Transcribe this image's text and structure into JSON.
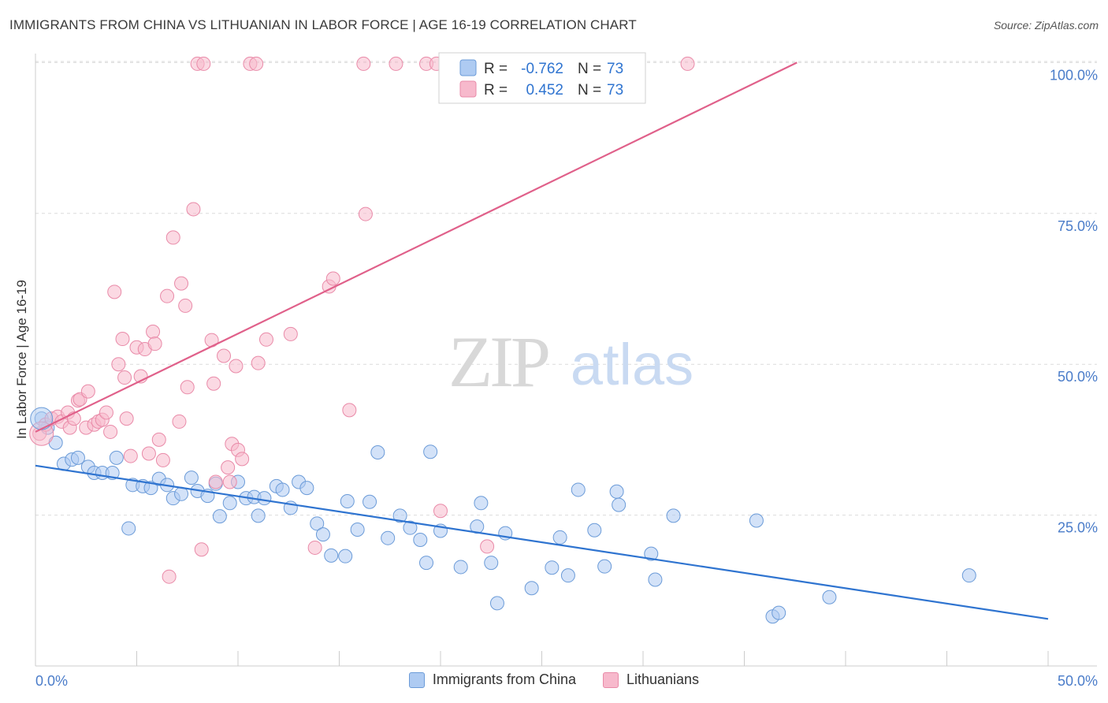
{
  "header": {
    "title": "IMMIGRANTS FROM CHINA VS LITHUANIAN IN LABOR FORCE | AGE 16-19 CORRELATION CHART",
    "source": "Source: ZipAtlas.com"
  },
  "watermark": {
    "zip": "ZIP",
    "atlas": "atlas"
  },
  "stats": [
    {
      "r_label": "R =",
      "r_value": "-0.762",
      "n_label": "N =",
      "n_value": "73"
    },
    {
      "r_label": "R =",
      "r_value": "0.452",
      "n_label": "N =",
      "n_value": "73"
    }
  ],
  "colors": {
    "china_fill": "#aecbf2",
    "china_stroke": "#6b9bd8",
    "china_line": "#2f74d0",
    "lith_fill": "#f7b9cc",
    "lith_stroke": "#e98aa8",
    "lith_line": "#e0608a",
    "axis_text": "#4a7cc9",
    "grid": "#dcdcdc"
  },
  "chart_data": {
    "type": "scatter",
    "title": "IMMIGRANTS FROM CHINA VS LITHUANIAN IN LABOR FORCE | AGE 16-19 CORRELATION CHART",
    "xlabel": "",
    "ylabel": "In Labor Force | Age 16-19",
    "xlim": [
      0,
      50
    ],
    "ylim": [
      0,
      102
    ],
    "x_tick_labels": [
      "0.0%",
      "50.0%"
    ],
    "y_tick_labels": [
      "25.0%",
      "50.0%",
      "75.0%",
      "100.0%"
    ],
    "y_ticks": [
      25,
      50,
      75,
      100
    ],
    "grid": true,
    "legend_position": "bottom",
    "series": [
      {
        "name": "Immigrants from China",
        "r": -0.762,
        "n": 73,
        "trend": {
          "x": [
            0,
            50
          ],
          "y": [
            33.2,
            7.8
          ]
        },
        "points": [
          [
            0.3,
            41.0
          ],
          [
            0.6,
            39.5
          ],
          [
            1.0,
            37.0
          ],
          [
            1.4,
            33.5
          ],
          [
            1.8,
            34.2
          ],
          [
            2.1,
            34.5
          ],
          [
            2.6,
            33.0
          ],
          [
            2.9,
            32.0
          ],
          [
            3.3,
            32.0
          ],
          [
            3.8,
            32.0
          ],
          [
            4.0,
            34.5
          ],
          [
            4.6,
            22.8
          ],
          [
            4.8,
            30.0
          ],
          [
            5.3,
            29.8
          ],
          [
            5.7,
            29.5
          ],
          [
            6.1,
            31.0
          ],
          [
            6.5,
            30.0
          ],
          [
            6.8,
            27.8
          ],
          [
            7.2,
            28.5
          ],
          [
            7.7,
            31.2
          ],
          [
            8.0,
            29.0
          ],
          [
            8.5,
            28.2
          ],
          [
            8.9,
            30.2
          ],
          [
            9.1,
            24.8
          ],
          [
            9.6,
            27.0
          ],
          [
            10.0,
            30.5
          ],
          [
            10.4,
            27.8
          ],
          [
            10.8,
            28.0
          ],
          [
            11.3,
            27.8
          ],
          [
            11.0,
            24.9
          ],
          [
            11.9,
            29.8
          ],
          [
            12.2,
            29.2
          ],
          [
            12.6,
            26.2
          ],
          [
            13.0,
            30.5
          ],
          [
            13.4,
            29.5
          ],
          [
            13.9,
            23.6
          ],
          [
            14.2,
            21.8
          ],
          [
            14.6,
            18.3
          ],
          [
            15.4,
            27.3
          ],
          [
            15.3,
            18.2
          ],
          [
            15.9,
            22.6
          ],
          [
            16.5,
            27.2
          ],
          [
            16.9,
            35.4
          ],
          [
            17.4,
            21.2
          ],
          [
            18.0,
            24.9
          ],
          [
            18.5,
            22.9
          ],
          [
            19.0,
            20.9
          ],
          [
            19.3,
            17.1
          ],
          [
            19.5,
            35.5
          ],
          [
            20.0,
            22.4
          ],
          [
            21.0,
            16.4
          ],
          [
            21.8,
            23.1
          ],
          [
            22.0,
            27.0
          ],
          [
            22.5,
            17.1
          ],
          [
            22.8,
            10.4
          ],
          [
            23.2,
            22.0
          ],
          [
            24.5,
            12.9
          ],
          [
            25.5,
            16.3
          ],
          [
            25.9,
            21.3
          ],
          [
            26.3,
            15.0
          ],
          [
            26.8,
            29.2
          ],
          [
            27.6,
            22.5
          ],
          [
            28.1,
            16.5
          ],
          [
            28.7,
            28.9
          ],
          [
            28.8,
            26.7
          ],
          [
            30.4,
            18.6
          ],
          [
            30.6,
            14.3
          ],
          [
            31.5,
            24.9
          ],
          [
            35.6,
            24.1
          ],
          [
            36.4,
            8.2
          ],
          [
            36.7,
            8.8
          ],
          [
            39.2,
            11.4
          ],
          [
            46.1,
            15.0
          ]
        ]
      },
      {
        "name": "Lithuanians",
        "r": 0.452,
        "n": 73,
        "trend": {
          "x": [
            0,
            37.6
          ],
          "y": [
            38.8,
            100
          ]
        },
        "points": [
          [
            0.2,
            38.5
          ],
          [
            0.5,
            40.0
          ],
          [
            0.8,
            41.0
          ],
          [
            1.1,
            41.3
          ],
          [
            1.3,
            40.5
          ],
          [
            1.6,
            42.0
          ],
          [
            1.7,
            39.5
          ],
          [
            1.9,
            41.0
          ],
          [
            2.1,
            44.0
          ],
          [
            2.2,
            44.2
          ],
          [
            2.5,
            39.5
          ],
          [
            2.6,
            45.5
          ],
          [
            2.9,
            40.0
          ],
          [
            3.1,
            40.5
          ],
          [
            3.3,
            40.8
          ],
          [
            3.5,
            42.0
          ],
          [
            3.7,
            38.8
          ],
          [
            3.9,
            62.0
          ],
          [
            4.1,
            50.0
          ],
          [
            4.3,
            54.2
          ],
          [
            4.4,
            47.8
          ],
          [
            4.5,
            41.0
          ],
          [
            4.7,
            34.8
          ],
          [
            5.0,
            52.8
          ],
          [
            5.2,
            48.0
          ],
          [
            5.4,
            52.5
          ],
          [
            5.6,
            35.2
          ],
          [
            5.8,
            55.4
          ],
          [
            5.9,
            53.4
          ],
          [
            6.1,
            37.5
          ],
          [
            6.3,
            34.1
          ],
          [
            6.5,
            61.3
          ],
          [
            6.6,
            14.8
          ],
          [
            6.8,
            71.0
          ],
          [
            7.1,
            40.5
          ],
          [
            7.2,
            63.4
          ],
          [
            7.4,
            59.7
          ],
          [
            7.5,
            46.2
          ],
          [
            7.8,
            75.7
          ],
          [
            8.0,
            99.8
          ],
          [
            8.2,
            19.3
          ],
          [
            8.3,
            99.8
          ],
          [
            8.7,
            54.0
          ],
          [
            8.8,
            46.8
          ],
          [
            8.9,
            30.5
          ],
          [
            9.3,
            51.4
          ],
          [
            9.5,
            32.9
          ],
          [
            9.6,
            30.5
          ],
          [
            9.7,
            36.8
          ],
          [
            9.9,
            49.7
          ],
          [
            10.0,
            35.8
          ],
          [
            10.2,
            34.3
          ],
          [
            10.6,
            99.8
          ],
          [
            10.9,
            99.8
          ],
          [
            11.0,
            50.2
          ],
          [
            11.4,
            54.1
          ],
          [
            12.6,
            55.0
          ],
          [
            13.8,
            19.6
          ],
          [
            14.5,
            62.9
          ],
          [
            14.7,
            64.2
          ],
          [
            15.5,
            42.4
          ],
          [
            16.2,
            99.8
          ],
          [
            16.3,
            74.9
          ],
          [
            17.8,
            99.8
          ],
          [
            19.3,
            99.8
          ],
          [
            19.8,
            99.8
          ],
          [
            20.0,
            25.7
          ],
          [
            21.0,
            99.8
          ],
          [
            21.5,
            99.8
          ],
          [
            22.0,
            99.8
          ],
          [
            22.3,
            19.8
          ],
          [
            23.0,
            99.8
          ],
          [
            32.2,
            99.8
          ]
        ]
      }
    ]
  },
  "legend": {
    "items": [
      {
        "label": "Immigrants from China"
      },
      {
        "label": "Lithuanians"
      }
    ]
  }
}
